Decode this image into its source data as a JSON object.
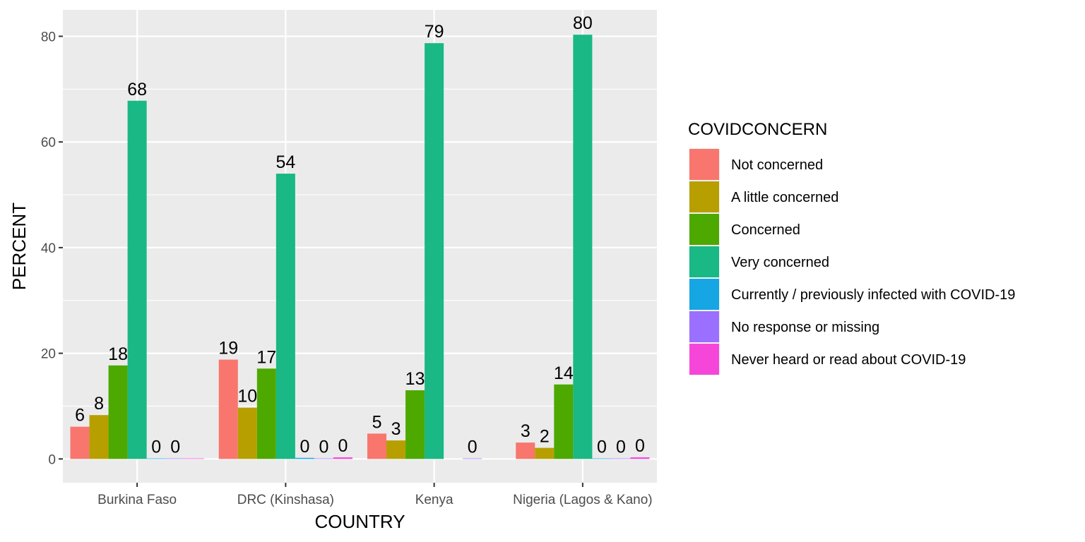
{
  "chart_data": {
    "type": "bar",
    "xlabel": "COUNTRY",
    "ylabel": "PERCENT",
    "ylim": [
      -4.5,
      85
    ],
    "yticks": [
      0,
      20,
      40,
      60,
      80
    ],
    "grid": true,
    "legend_position": "right",
    "legend_title": "COVIDCONCERN",
    "categories": [
      "Burkina Faso",
      "DRC (Kinshasa)",
      "Kenya",
      "Nigeria (Lagos & Kano)"
    ],
    "series": [
      {
        "name": "Not concerned",
        "color": "#F8766D",
        "values": [
          6.1,
          18.8,
          4.8,
          3.1
        ],
        "labels": [
          "6",
          "19",
          "5",
          "3"
        ]
      },
      {
        "name": "A little concerned",
        "color": "#B79F00",
        "values": [
          8.3,
          9.7,
          3.5,
          2.1
        ],
        "labels": [
          "8",
          "10",
          "3",
          "2"
        ]
      },
      {
        "name": "Concerned",
        "color": "#4DA800",
        "values": [
          17.7,
          17.1,
          13.0,
          14.1
        ],
        "labels": [
          "18",
          "17",
          "13",
          "14"
        ]
      },
      {
        "name": "Very concerned",
        "color": "#19B885",
        "values": [
          67.8,
          54.0,
          78.7,
          80.3
        ],
        "labels": [
          "68",
          "54",
          "79",
          "80"
        ]
      },
      {
        "name": "Currently / previously infected with COVID-19",
        "color": "#16A6E4",
        "values": [
          0.1,
          0.2,
          null,
          0.1
        ],
        "labels": [
          "0",
          "0",
          null,
          "0"
        ]
      },
      {
        "name": "No response or missing",
        "color": "#9B6FFF",
        "values": [
          0.1,
          0.1,
          0.1,
          0.1
        ],
        "labels": [
          "0",
          "0",
          "0",
          "0"
        ]
      },
      {
        "name": "Never heard or read about COVID-19",
        "color": "#F646DA",
        "values": [
          0.1,
          0.3,
          null,
          0.3
        ],
        "labels": [
          null,
          "0",
          null,
          "0"
        ]
      }
    ]
  }
}
